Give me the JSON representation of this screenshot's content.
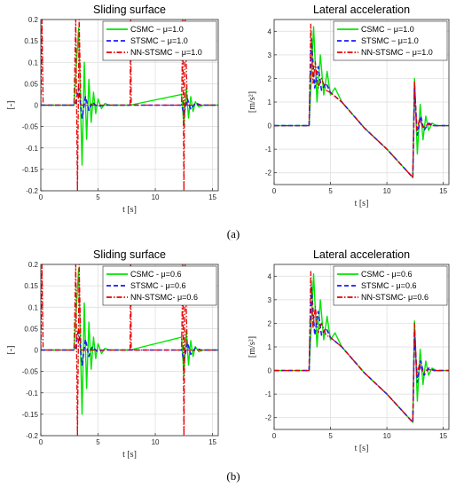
{
  "chart_data": [
    {
      "type": "line",
      "title": "Sliding surface",
      "xlabel": "t [s]",
      "ylabel": "[-]",
      "xlim": [
        0,
        15.5
      ],
      "ylim": [
        -0.2,
        0.2
      ],
      "xticks": [
        "0",
        "5",
        "10",
        "15"
      ],
      "yticks": [
        "-0.2",
        "-0.15",
        "-0.1",
        "-0.05",
        "0",
        "0.05",
        "0.1",
        "0.15",
        "0.2"
      ],
      "grid": true,
      "legend_position": "top-right",
      "series": [
        {
          "name": "CSMC − μ=1.0",
          "color": "#00e600",
          "style": "solid",
          "x": [
            0,
            2.9,
            3.3,
            3.6,
            3.8,
            4.0,
            4.2,
            4.4,
            4.6,
            4.8,
            5.0,
            5.3,
            5.6,
            6.0,
            7.8,
            12.3,
            12.5,
            12.7,
            12.9,
            13.1,
            13.3,
            13.5,
            13.8,
            14.2,
            15.5
          ],
          "y": [
            0,
            0,
            0.18,
            -0.14,
            0.1,
            -0.08,
            0.06,
            -0.04,
            0.03,
            -0.02,
            0.015,
            -0.008,
            0.004,
            0,
            0,
            0.025,
            -0.05,
            0.04,
            -0.03,
            0.02,
            -0.015,
            0.008,
            -0.004,
            0,
            0
          ]
        },
        {
          "name": "STSMC − μ=1.0",
          "color": "#1a1aff",
          "style": "dashed",
          "x": [
            0,
            3.0,
            3.3,
            3.6,
            3.9,
            4.2,
            4.5,
            4.9,
            5.5,
            12.3,
            12.5,
            12.8,
            13.1,
            13.5,
            14.0,
            15.5
          ],
          "y": [
            0,
            0,
            0.04,
            -0.03,
            0.02,
            -0.012,
            0.007,
            -0.003,
            0,
            0,
            -0.02,
            0.015,
            -0.01,
            0.005,
            0,
            0
          ]
        },
        {
          "name": "NN-STSMC − μ=1.0",
          "color": "#e60000",
          "style": "dashdot",
          "x": [
            0,
            0.1,
            0.2,
            2.9,
            3.05,
            3.2,
            3.35,
            3.5,
            7.8,
            7.85,
            7.9,
            12.3,
            12.4,
            12.5,
            12.6,
            12.8,
            15.5
          ],
          "y": [
            0,
            0.2,
            0,
            0,
            0.2,
            -0.2,
            0.2,
            0,
            0,
            0.2,
            0,
            0,
            0.2,
            -0.2,
            0.2,
            0,
            0
          ]
        }
      ]
    },
    {
      "type": "line",
      "title": "Lateral acceleration",
      "xlabel": "t [s]",
      "ylabel": "[m/s²]",
      "xlim": [
        0,
        15.5
      ],
      "ylim": [
        -2.5,
        4.5
      ],
      "xticks": [
        "0",
        "5",
        "10",
        "15"
      ],
      "yticks": [
        "-2",
        "-1",
        "0",
        "1",
        "2",
        "3",
        "4"
      ],
      "grid": true,
      "legend_position": "top-right",
      "series": [
        {
          "name": "CSMC − μ=1.0",
          "color": "#00e600",
          "style": "solid",
          "x": [
            0,
            3.1,
            3.5,
            3.8,
            4.1,
            4.4,
            4.7,
            5.0,
            5.4,
            6.0,
            8.0,
            10.0,
            12.3,
            12.45,
            12.7,
            12.95,
            13.2,
            13.45,
            13.7,
            14.0,
            14.4,
            15.5
          ],
          "y": [
            0,
            0,
            4.2,
            1.0,
            3.0,
            1.3,
            2.3,
            1.3,
            1.6,
            1.0,
            -0.1,
            -1.0,
            -2.2,
            2.0,
            -1.2,
            0.9,
            -0.6,
            0.4,
            -0.2,
            0.1,
            0,
            0
          ]
        },
        {
          "name": "STSMC − μ=1.0",
          "color": "#1a1aff",
          "style": "dashed",
          "x": [
            0,
            3.1,
            3.3,
            3.6,
            3.9,
            4.2,
            4.6,
            5.0,
            6.0,
            8.0,
            10.0,
            12.3,
            12.45,
            12.7,
            13.0,
            13.3,
            13.7,
            14.2,
            15.5
          ],
          "y": [
            0,
            0,
            3.7,
            1.6,
            2.5,
            1.5,
            1.8,
            1.4,
            1.0,
            -0.1,
            -1.0,
            -2.2,
            1.6,
            -0.4,
            0.4,
            -0.2,
            0.1,
            0,
            0
          ]
        },
        {
          "name": "NN-STSMC − μ=1.0",
          "color": "#e60000",
          "style": "dashdot",
          "x": [
            0,
            3.1,
            3.25,
            3.45,
            3.65,
            3.9,
            4.2,
            4.6,
            5.0,
            6.0,
            8.0,
            10.0,
            12.3,
            12.45,
            12.65,
            12.9,
            13.2,
            13.6,
            14.1,
            15.5
          ],
          "y": [
            0,
            0,
            4.3,
            1.8,
            2.7,
            1.6,
            2.0,
            1.5,
            1.4,
            1.0,
            -0.1,
            -1.0,
            -2.2,
            1.9,
            -0.2,
            0.3,
            -0.1,
            0.05,
            0,
            0
          ]
        }
      ]
    },
    {
      "type": "line",
      "title": "Sliding surface",
      "xlabel": "t [s]",
      "ylabel": "[-]",
      "xlim": [
        0,
        15.5
      ],
      "ylim": [
        -0.2,
        0.2
      ],
      "xticks": [
        "0",
        "5",
        "10",
        "15"
      ],
      "yticks": [
        "-0.2",
        "-0.15",
        "-0.1",
        "-0.05",
        "0",
        "0.05",
        "0.1",
        "0.15",
        "0.2"
      ],
      "grid": true,
      "legend_position": "top-right",
      "series": [
        {
          "name": "CSMC -  μ=0.6",
          "color": "#00e600",
          "style": "solid",
          "x": [
            0,
            2.9,
            3.3,
            3.6,
            3.8,
            4.0,
            4.2,
            4.4,
            4.6,
            4.8,
            5.0,
            5.3,
            5.6,
            6.0,
            7.8,
            12.3,
            12.5,
            12.7,
            12.9,
            13.1,
            13.3,
            13.5,
            13.8,
            14.2,
            15.5
          ],
          "y": [
            0,
            0,
            0.19,
            -0.15,
            0.11,
            -0.09,
            0.065,
            -0.045,
            0.03,
            -0.02,
            0.015,
            -0.008,
            0.004,
            0,
            0,
            0.03,
            -0.06,
            0.045,
            -0.035,
            0.022,
            -0.015,
            0.008,
            -0.004,
            0,
            0
          ]
        },
        {
          "name": "STSMC -  μ=0.6",
          "color": "#1a1aff",
          "style": "dashed",
          "x": [
            0,
            3.0,
            3.3,
            3.6,
            3.9,
            4.2,
            4.5,
            4.9,
            5.5,
            12.3,
            12.5,
            12.8,
            13.1,
            13.5,
            14.0,
            15.5
          ],
          "y": [
            0,
            0,
            0.05,
            -0.035,
            0.025,
            -0.015,
            0.008,
            -0.003,
            0,
            0,
            -0.025,
            0.018,
            -0.01,
            0.005,
            0,
            0
          ]
        },
        {
          "name": "NN-STSMC-  μ=0.6",
          "color": "#e60000",
          "style": "dashdot",
          "x": [
            0,
            0.1,
            0.2,
            2.9,
            3.05,
            3.2,
            3.35,
            3.5,
            7.8,
            7.85,
            7.9,
            12.3,
            12.4,
            12.5,
            12.6,
            12.8,
            15.5
          ],
          "y": [
            0,
            0.2,
            0,
            0,
            0.2,
            -0.2,
            0.2,
            0,
            0,
            0.2,
            0,
            0,
            0.2,
            -0.2,
            0.2,
            0,
            0
          ]
        }
      ]
    },
    {
      "type": "line",
      "title": "Lateral acceleration",
      "xlabel": "t [s]",
      "ylabel": "[m/s²]",
      "xlim": [
        0,
        15.5
      ],
      "ylim": [
        -2.5,
        4.5
      ],
      "xticks": [
        "0",
        "5",
        "10",
        "15"
      ],
      "yticks": [
        "-2",
        "-1",
        "0",
        "1",
        "2",
        "3",
        "4"
      ],
      "grid": true,
      "legend_position": "top-right",
      "series": [
        {
          "name": "CSMC -  μ=0.6",
          "color": "#00e600",
          "style": "solid",
          "x": [
            0,
            3.1,
            3.5,
            3.8,
            4.1,
            4.4,
            4.7,
            5.0,
            5.4,
            6.0,
            8.0,
            10.0,
            12.3,
            12.45,
            12.7,
            12.95,
            13.2,
            13.45,
            13.7,
            14.0,
            14.4,
            15.5
          ],
          "y": [
            0,
            0,
            4.1,
            1.0,
            3.0,
            1.3,
            2.3,
            1.3,
            1.6,
            1.0,
            -0.1,
            -1.0,
            -2.2,
            2.1,
            -1.3,
            0.9,
            -0.6,
            0.4,
            -0.2,
            0.1,
            0,
            0
          ]
        },
        {
          "name": "STSMC -  μ=0.6",
          "color": "#1a1aff",
          "style": "dashed",
          "x": [
            0,
            3.1,
            3.3,
            3.6,
            3.9,
            4.2,
            4.6,
            5.0,
            6.0,
            8.0,
            10.0,
            12.3,
            12.45,
            12.7,
            13.0,
            13.3,
            13.7,
            14.2,
            15.5
          ],
          "y": [
            0,
            0,
            3.6,
            1.5,
            2.5,
            1.5,
            1.8,
            1.4,
            1.0,
            -0.1,
            -1.0,
            -2.2,
            1.7,
            -0.5,
            0.4,
            -0.2,
            0.1,
            0,
            0
          ]
        },
        {
          "name": "NN-STSMC-  μ=0.6",
          "color": "#e60000",
          "style": "dashdot",
          "x": [
            0,
            3.1,
            3.25,
            3.45,
            3.65,
            3.9,
            4.2,
            4.6,
            5.0,
            6.0,
            8.0,
            10.0,
            12.3,
            12.45,
            12.65,
            12.9,
            13.2,
            13.6,
            14.1,
            15.5
          ],
          "y": [
            0,
            0,
            4.2,
            1.8,
            2.7,
            1.6,
            2.0,
            1.5,
            1.4,
            1.0,
            -0.1,
            -1.0,
            -2.2,
            2.0,
            -0.2,
            0.3,
            -0.1,
            0.05,
            0,
            0
          ]
        }
      ]
    }
  ],
  "captions": [
    "(a)",
    "(b)"
  ]
}
